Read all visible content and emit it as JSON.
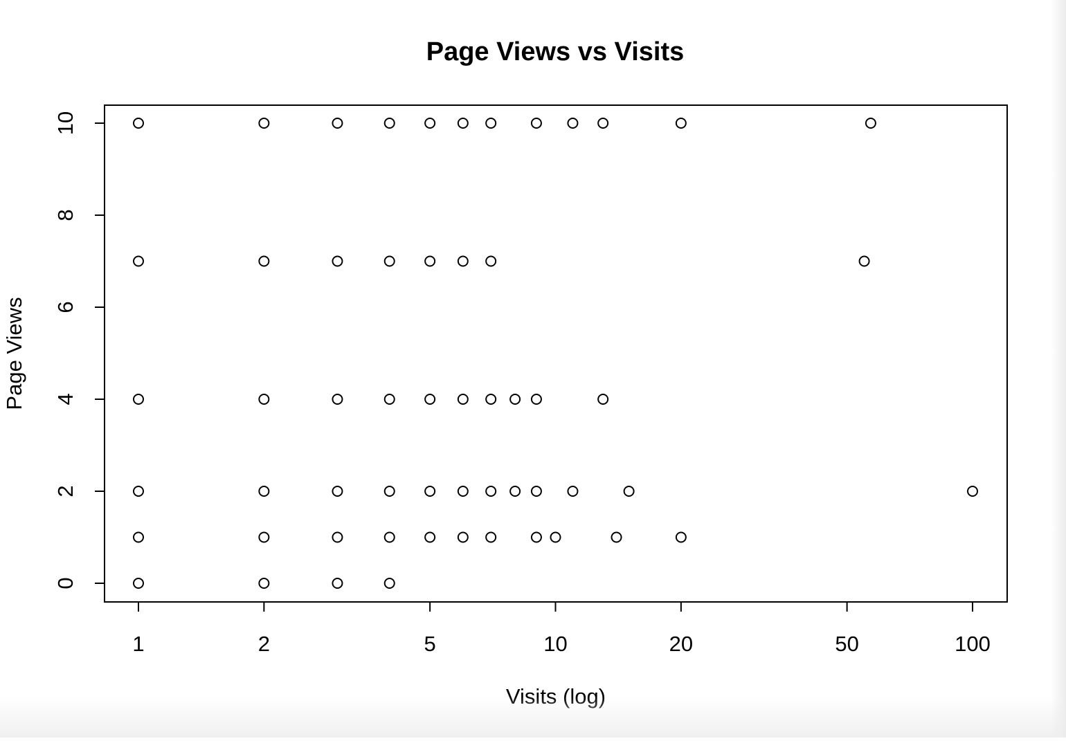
{
  "chart_data": {
    "type": "scatter",
    "title": "Page Views vs Visits",
    "xlabel": "Visits (log)",
    "ylabel": "Page Views",
    "x_scale": "log",
    "xlim": [
      0.88,
      115
    ],
    "ylim": [
      -0.4,
      10.4
    ],
    "x_ticks": [
      1,
      2,
      5,
      10,
      20,
      50,
      100
    ],
    "x_tick_labels": [
      "1",
      "2",
      "5",
      "10",
      "20",
      "50",
      "100"
    ],
    "y_ticks": [
      0,
      2,
      4,
      6,
      8,
      10
    ],
    "y_tick_labels": [
      "0",
      "2",
      "4",
      "6",
      "8",
      "10"
    ],
    "grid": false,
    "legend": "none",
    "marker": "open-circle",
    "marker_color": "#000000",
    "points": [
      {
        "x": 1,
        "y": 10
      },
      {
        "x": 2,
        "y": 10
      },
      {
        "x": 3,
        "y": 10
      },
      {
        "x": 4,
        "y": 10
      },
      {
        "x": 5,
        "y": 10
      },
      {
        "x": 6,
        "y": 10
      },
      {
        "x": 7,
        "y": 10
      },
      {
        "x": 9,
        "y": 10
      },
      {
        "x": 11,
        "y": 10
      },
      {
        "x": 13,
        "y": 10
      },
      {
        "x": 20,
        "y": 10
      },
      {
        "x": 57,
        "y": 10
      },
      {
        "x": 1,
        "y": 7
      },
      {
        "x": 2,
        "y": 7
      },
      {
        "x": 3,
        "y": 7
      },
      {
        "x": 4,
        "y": 7
      },
      {
        "x": 5,
        "y": 7
      },
      {
        "x": 6,
        "y": 7
      },
      {
        "x": 7,
        "y": 7
      },
      {
        "x": 55,
        "y": 7
      },
      {
        "x": 1,
        "y": 4
      },
      {
        "x": 2,
        "y": 4
      },
      {
        "x": 3,
        "y": 4
      },
      {
        "x": 4,
        "y": 4
      },
      {
        "x": 5,
        "y": 4
      },
      {
        "x": 6,
        "y": 4
      },
      {
        "x": 7,
        "y": 4
      },
      {
        "x": 8,
        "y": 4
      },
      {
        "x": 9,
        "y": 4
      },
      {
        "x": 13,
        "y": 4
      },
      {
        "x": 1,
        "y": 2
      },
      {
        "x": 2,
        "y": 2
      },
      {
        "x": 3,
        "y": 2
      },
      {
        "x": 4,
        "y": 2
      },
      {
        "x": 5,
        "y": 2
      },
      {
        "x": 6,
        "y": 2
      },
      {
        "x": 7,
        "y": 2
      },
      {
        "x": 8,
        "y": 2
      },
      {
        "x": 9,
        "y": 2
      },
      {
        "x": 11,
        "y": 2
      },
      {
        "x": 15,
        "y": 2
      },
      {
        "x": 100,
        "y": 2
      },
      {
        "x": 1,
        "y": 1
      },
      {
        "x": 2,
        "y": 1
      },
      {
        "x": 3,
        "y": 1
      },
      {
        "x": 4,
        "y": 1
      },
      {
        "x": 5,
        "y": 1
      },
      {
        "x": 6,
        "y": 1
      },
      {
        "x": 7,
        "y": 1
      },
      {
        "x": 9,
        "y": 1
      },
      {
        "x": 10,
        "y": 1
      },
      {
        "x": 14,
        "y": 1
      },
      {
        "x": 20,
        "y": 1
      },
      {
        "x": 1,
        "y": 0
      },
      {
        "x": 2,
        "y": 0
      },
      {
        "x": 3,
        "y": 0
      },
      {
        "x": 4,
        "y": 0
      }
    ]
  }
}
